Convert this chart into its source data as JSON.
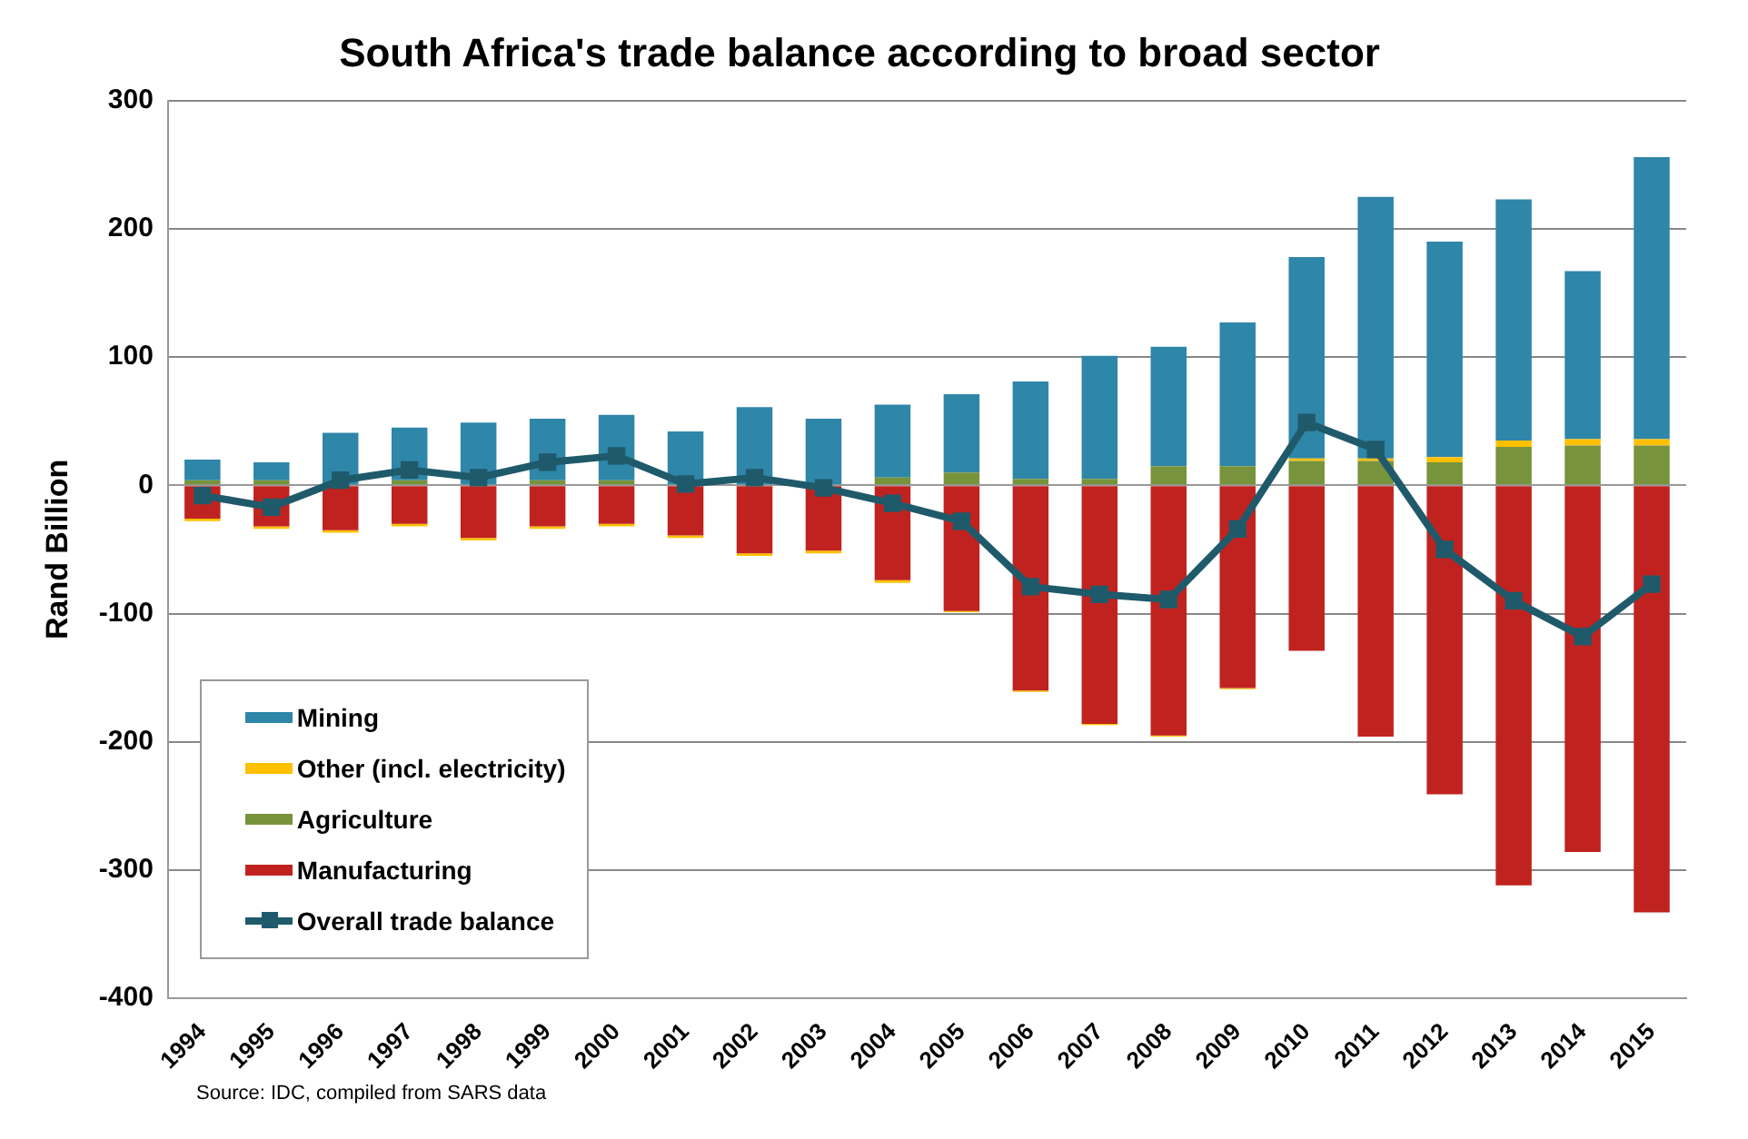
{
  "chart_data": {
    "type": "bar",
    "title": "South Africa's trade balance according to broad sector",
    "ylabel": "Rand Billion",
    "categories": [
      "1994",
      "1995",
      "1996",
      "1997",
      "1998",
      "1999",
      "2000",
      "2001",
      "2002",
      "2003",
      "2004",
      "2005",
      "2006",
      "2007",
      "2008",
      "2009",
      "2010",
      "2011",
      "2012",
      "2013",
      "2014",
      "2015"
    ],
    "stacked": true,
    "series": [
      {
        "name": "Manufacturing",
        "color": "#c0231f",
        "values": [
          -26,
          -32,
          -35,
          -30,
          -41,
          -32,
          -30,
          -39,
          -53,
          -51,
          -74,
          -98,
          -160,
          -186,
          -195,
          -158,
          -129,
          -196,
          -241,
          -312,
          -286,
          -333
        ]
      },
      {
        "name": "Agriculture",
        "color": "#77933c",
        "values": [
          4,
          4,
          null,
          4,
          null,
          4,
          4,
          null,
          null,
          null,
          6,
          10,
          5,
          5,
          15,
          15,
          19,
          19,
          18,
          30,
          31,
          31
        ]
      },
      {
        "name": "Other (incl. electricity)",
        "color": "#ffc000",
        "values": [
          -2,
          -2,
          -2,
          -2,
          -2,
          -2,
          -2,
          -2,
          -2,
          -2,
          -2,
          -1,
          -1,
          -1,
          -1,
          -1,
          2,
          2,
          4,
          5,
          5,
          5
        ]
      },
      {
        "name": "Mining",
        "color": "#2e86a8",
        "values": [
          16,
          14,
          41,
          41,
          49,
          48,
          51,
          42,
          61,
          52,
          57,
          61,
          76,
          96,
          93,
          112,
          157,
          204,
          168,
          188,
          131,
          220
        ]
      },
      {
        "name": "Overall trade balance",
        "type": "line",
        "color": "#1f5a6b",
        "marker": "square",
        "values": [
          -8,
          -17,
          4,
          12,
          6,
          18,
          23,
          1,
          6,
          -2,
          -14,
          -28,
          -79,
          -85,
          -89,
          -34,
          49,
          28,
          -50,
          -90,
          -118,
          -77
        ]
      }
    ],
    "ylim": [
      -400,
      300
    ],
    "yticks": [
      -400,
      -300,
      -200,
      -100,
      0,
      100,
      200,
      300
    ],
    "grid": "y",
    "legend": "bottom left",
    "annotations": [
      "Source: IDC, compiled from SARS data"
    ]
  }
}
